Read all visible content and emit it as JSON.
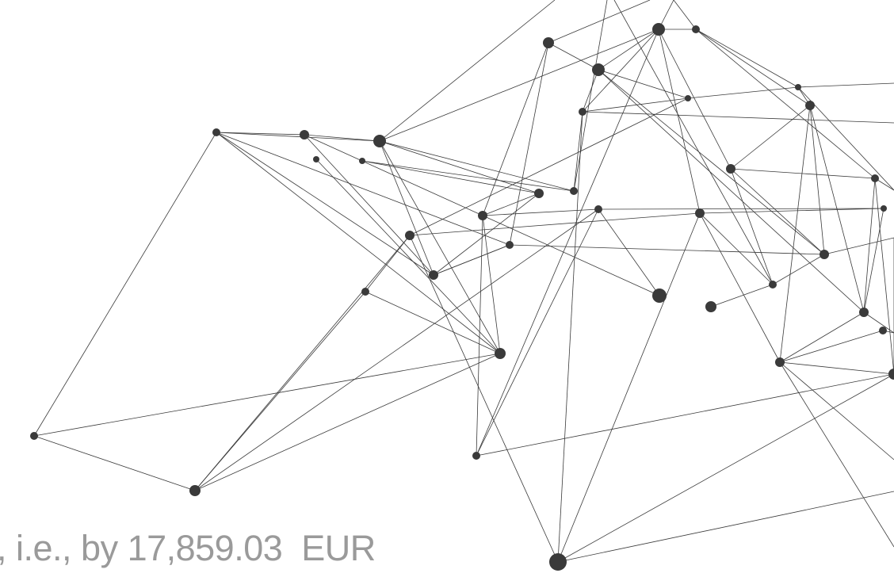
{
  "caption": ", i.e., by 17,859.03  EUR"
}
